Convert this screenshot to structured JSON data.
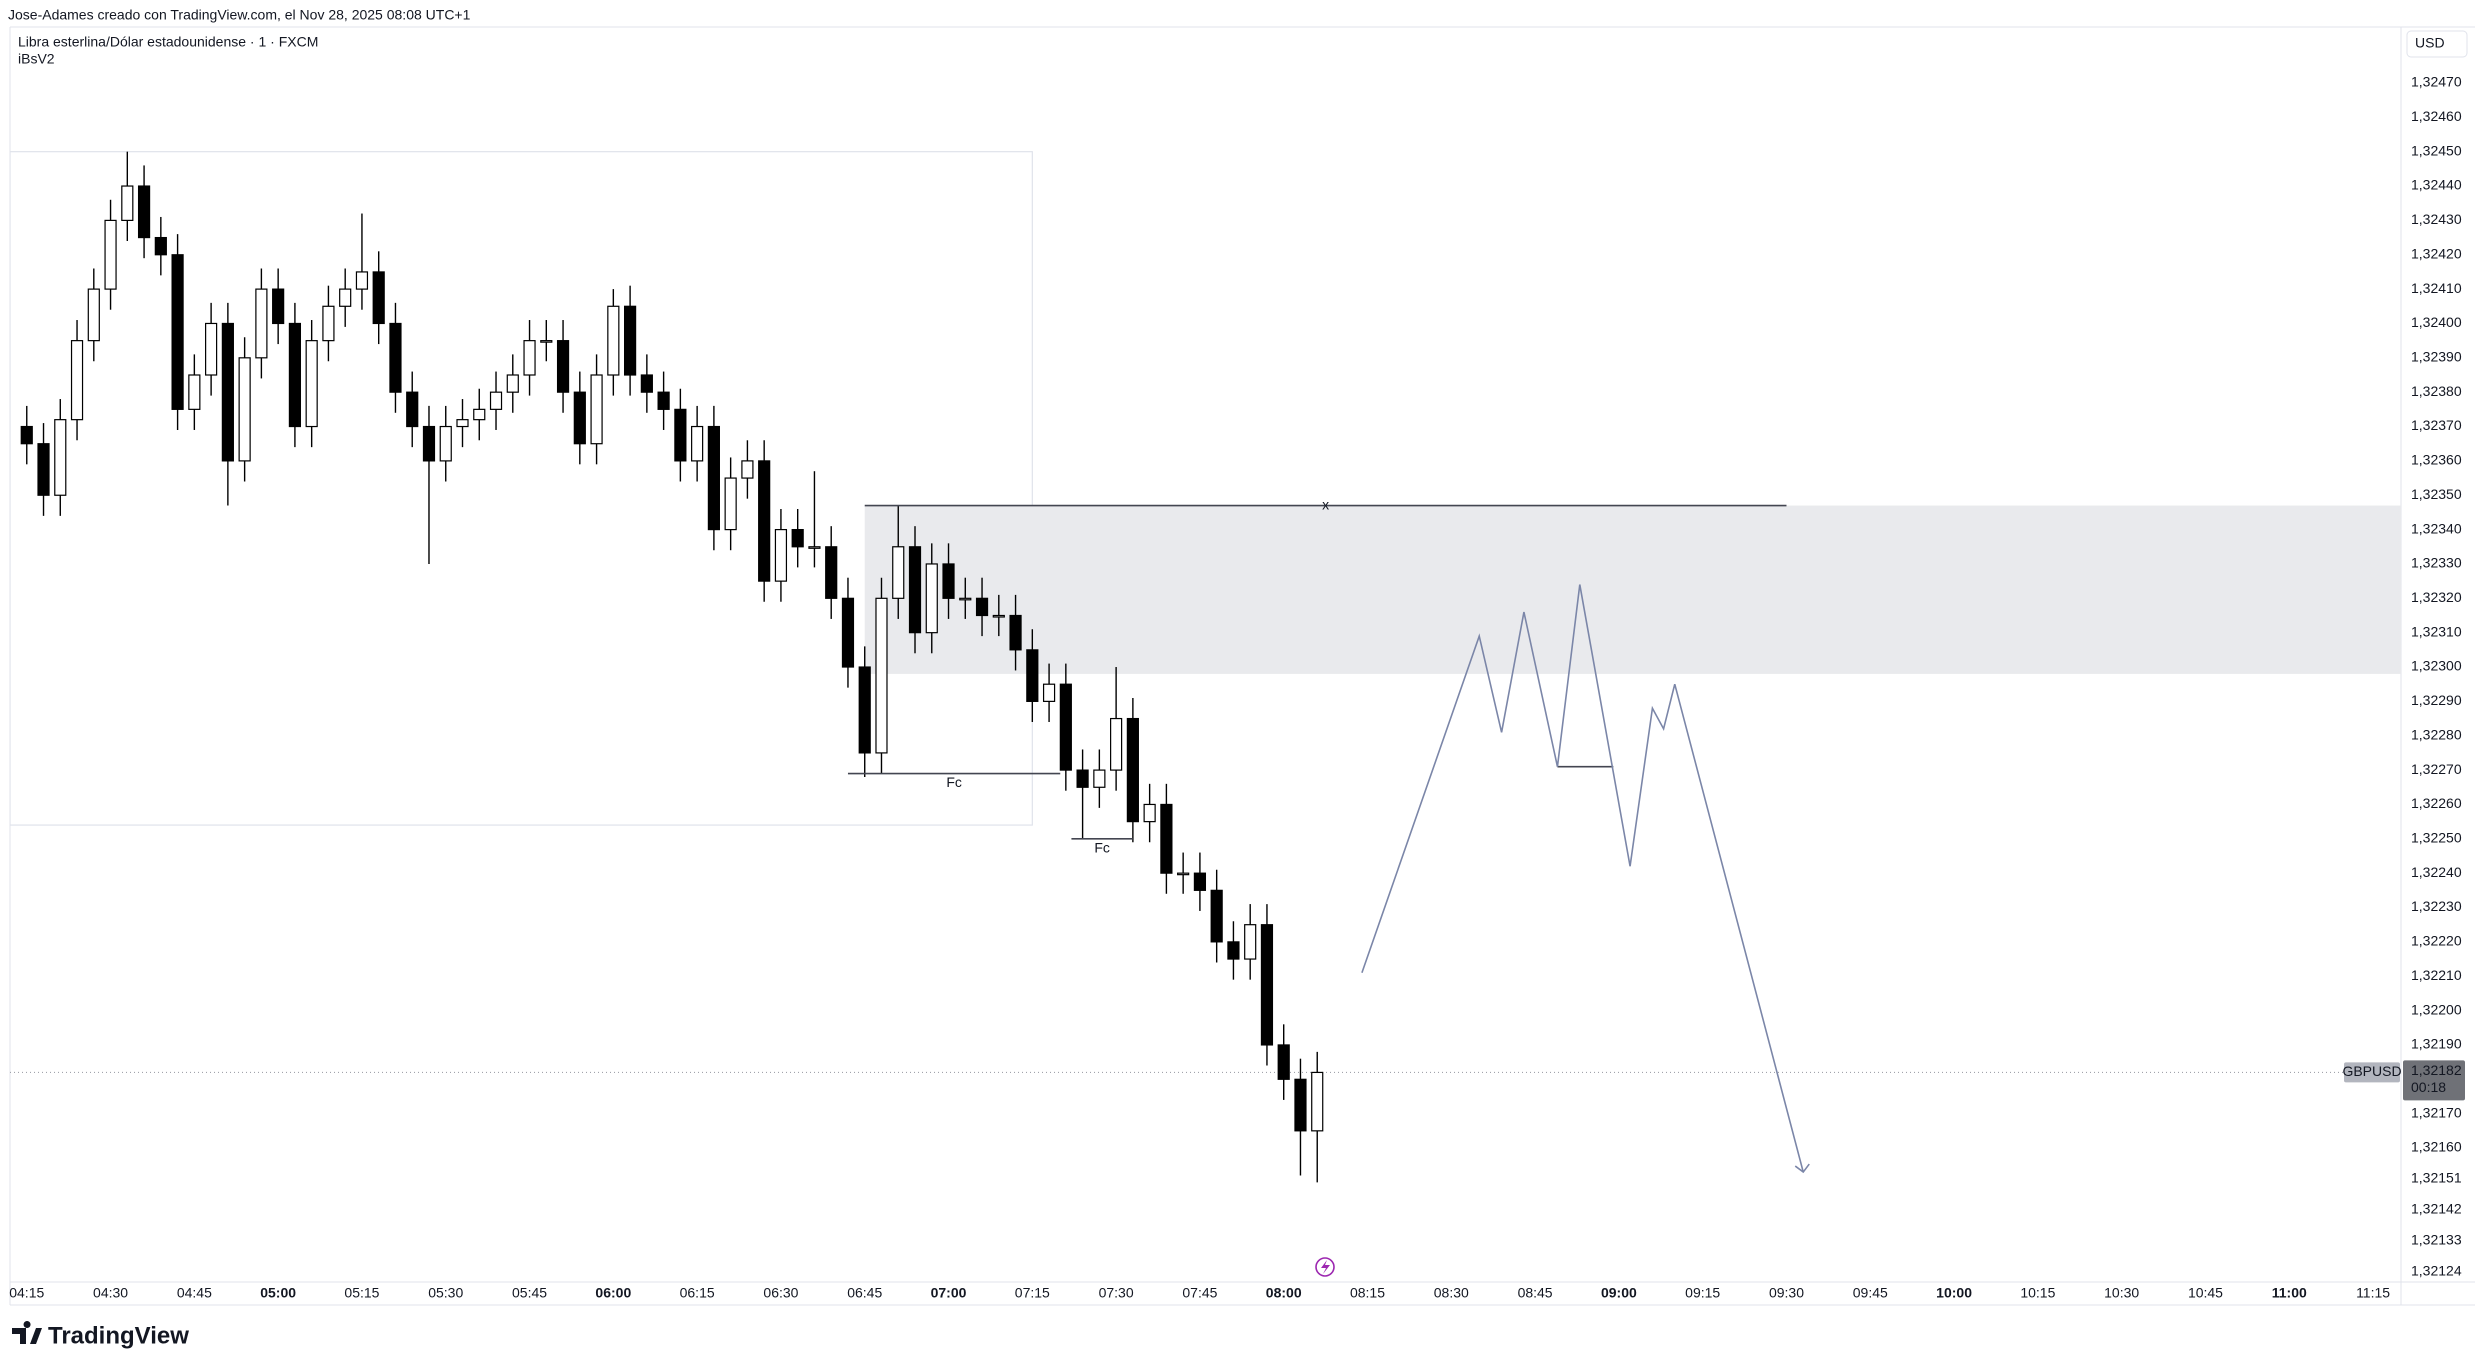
{
  "header": {
    "author_line": "Jose-Adames creado con TradingView.com, el Nov 28, 2025 08:08 UTC+1",
    "symbol_line": "Libra esterlina/Dólar estadounidense · 1 · FXCM",
    "indicator": "iBsV2",
    "currency": "USD",
    "brand": "TradingView"
  },
  "chart_data": {
    "type": "candlestick",
    "x": [
      "04:15",
      "04:18",
      "04:21",
      "04:24",
      "04:27",
      "04:30",
      "04:33",
      "04:36",
      "04:39",
      "04:42",
      "04:45",
      "04:48",
      "04:51",
      "04:54",
      "04:57",
      "05:00",
      "05:03",
      "05:06",
      "05:09",
      "05:12",
      "05:15",
      "05:18",
      "05:21",
      "05:24",
      "05:27",
      "05:30",
      "05:33",
      "05:36",
      "05:39",
      "05:42",
      "05:45",
      "05:48",
      "05:51",
      "05:54",
      "05:57",
      "06:00",
      "06:03",
      "06:06",
      "06:09",
      "06:12",
      "06:15",
      "06:18",
      "06:21",
      "06:24",
      "06:27",
      "06:30",
      "06:33",
      "06:36",
      "06:39",
      "06:42",
      "06:45",
      "06:48",
      "06:51",
      "06:54",
      "06:57",
      "07:00",
      "07:03",
      "07:06",
      "07:09",
      "07:12",
      "07:15",
      "07:18",
      "07:21",
      "07:24",
      "07:27",
      "07:30",
      "07:33",
      "07:36",
      "07:39",
      "07:42",
      "07:45",
      "07:48",
      "07:51",
      "07:54",
      "07:57",
      "08:00",
      "08:03",
      "08:06"
    ],
    "ohlc": [
      [
        1.3237,
        1.32376,
        1.32359,
        1.32365
      ],
      [
        1.32365,
        1.32371,
        1.32344,
        1.3235
      ],
      [
        1.3235,
        1.32378,
        1.32344,
        1.32372
      ],
      [
        1.32372,
        1.32401,
        1.32366,
        1.32395
      ],
      [
        1.32395,
        1.32416,
        1.32389,
        1.3241
      ],
      [
        1.3241,
        1.32436,
        1.32404,
        1.3243
      ],
      [
        1.3243,
        1.3245,
        1.32424,
        1.3244
      ],
      [
        1.3244,
        1.32446,
        1.32419,
        1.32425
      ],
      [
        1.32425,
        1.32431,
        1.32414,
        1.3242
      ],
      [
        1.3242,
        1.32426,
        1.32369,
        1.32375
      ],
      [
        1.32375,
        1.32391,
        1.32369,
        1.32385
      ],
      [
        1.32385,
        1.32406,
        1.32379,
        1.324
      ],
      [
        1.324,
        1.32406,
        1.32347,
        1.3236
      ],
      [
        1.3236,
        1.32396,
        1.32354,
        1.3239
      ],
      [
        1.3239,
        1.32416,
        1.32384,
        1.3241
      ],
      [
        1.3241,
        1.32416,
        1.32394,
        1.324
      ],
      [
        1.324,
        1.32406,
        1.32364,
        1.3237
      ],
      [
        1.3237,
        1.32401,
        1.32364,
        1.32395
      ],
      [
        1.32395,
        1.32411,
        1.32389,
        1.32405
      ],
      [
        1.32405,
        1.32416,
        1.32399,
        1.3241
      ],
      [
        1.3241,
        1.32432,
        1.32404,
        1.32415
      ],
      [
        1.32415,
        1.32421,
        1.32394,
        1.324
      ],
      [
        1.324,
        1.32406,
        1.32374,
        1.3238
      ],
      [
        1.3238,
        1.32386,
        1.32364,
        1.3237
      ],
      [
        1.3237,
        1.32376,
        1.3233,
        1.3236
      ],
      [
        1.3236,
        1.32376,
        1.32354,
        1.3237
      ],
      [
        1.3237,
        1.32378,
        1.32364,
        1.32372
      ],
      [
        1.32372,
        1.32381,
        1.32366,
        1.32375
      ],
      [
        1.32375,
        1.32386,
        1.32369,
        1.3238
      ],
      [
        1.3238,
        1.32391,
        1.32374,
        1.32385
      ],
      [
        1.32385,
        1.32401,
        1.32379,
        1.32395
      ],
      [
        1.32395,
        1.32401,
        1.32389,
        1.32395
      ],
      [
        1.32395,
        1.32401,
        1.32374,
        1.3238
      ],
      [
        1.3238,
        1.32386,
        1.32359,
        1.32365
      ],
      [
        1.32365,
        1.32391,
        1.32359,
        1.32385
      ],
      [
        1.32385,
        1.3241,
        1.32379,
        1.32405
      ],
      [
        1.32405,
        1.32411,
        1.32379,
        1.32385
      ],
      [
        1.32385,
        1.32391,
        1.32374,
        1.3238
      ],
      [
        1.3238,
        1.32386,
        1.32369,
        1.32375
      ],
      [
        1.32375,
        1.32381,
        1.32354,
        1.3236
      ],
      [
        1.3236,
        1.32376,
        1.32354,
        1.3237
      ],
      [
        1.3237,
        1.32376,
        1.32334,
        1.3234
      ],
      [
        1.3234,
        1.32361,
        1.32334,
        1.32355
      ],
      [
        1.32355,
        1.32366,
        1.32349,
        1.3236
      ],
      [
        1.3236,
        1.32366,
        1.32319,
        1.32325
      ],
      [
        1.32325,
        1.32346,
        1.32319,
        1.3234
      ],
      [
        1.3234,
        1.32346,
        1.32329,
        1.32335
      ],
      [
        1.32335,
        1.32357,
        1.32329,
        1.32335
      ],
      [
        1.32335,
        1.32341,
        1.32314,
        1.3232
      ],
      [
        1.3232,
        1.32326,
        1.32294,
        1.323
      ],
      [
        1.323,
        1.32306,
        1.32268,
        1.32275
      ],
      [
        1.32275,
        1.32326,
        1.32269,
        1.3232
      ],
      [
        1.3232,
        1.32347,
        1.32314,
        1.32335
      ],
      [
        1.32335,
        1.32341,
        1.32304,
        1.3231
      ],
      [
        1.3231,
        1.32336,
        1.32304,
        1.3233
      ],
      [
        1.3233,
        1.32336,
        1.32314,
        1.3232
      ],
      [
        1.3232,
        1.32326,
        1.32314,
        1.3232
      ],
      [
        1.3232,
        1.32326,
        1.32309,
        1.32315
      ],
      [
        1.32315,
        1.32321,
        1.32309,
        1.32315
      ],
      [
        1.32315,
        1.32321,
        1.32299,
        1.32305
      ],
      [
        1.32305,
        1.32311,
        1.32284,
        1.3229
      ],
      [
        1.3229,
        1.32301,
        1.32284,
        1.32295
      ],
      [
        1.32295,
        1.32301,
        1.32264,
        1.3227
      ],
      [
        1.3227,
        1.32276,
        1.3225,
        1.32265
      ],
      [
        1.32265,
        1.32276,
        1.32259,
        1.3227
      ],
      [
        1.3227,
        1.323,
        1.32264,
        1.32285
      ],
      [
        1.32285,
        1.32291,
        1.32249,
        1.32255
      ],
      [
        1.32255,
        1.32266,
        1.32249,
        1.3226
      ],
      [
        1.3226,
        1.32266,
        1.32234,
        1.3224
      ],
      [
        1.3224,
        1.32246,
        1.32234,
        1.3224
      ],
      [
        1.3224,
        1.32246,
        1.32229,
        1.32235
      ],
      [
        1.32235,
        1.32241,
        1.32214,
        1.3222
      ],
      [
        1.3222,
        1.32226,
        1.32209,
        1.32215
      ],
      [
        1.32215,
        1.32231,
        1.32209,
        1.32225
      ],
      [
        1.32225,
        1.32231,
        1.32184,
        1.3219
      ],
      [
        1.3219,
        1.32196,
        1.32174,
        1.3218
      ],
      [
        1.3218,
        1.32186,
        1.32152,
        1.32165
      ],
      [
        1.32165,
        1.32188,
        1.3215,
        1.32182
      ]
    ],
    "up_color": "#ffffff",
    "down_color": "#000000",
    "wick_color": "#000000",
    "xlim": [
      "04:12",
      "11:20"
    ],
    "ylim": [
      1.32121,
      1.32486
    ],
    "xticks": [
      "04:15",
      "04:30",
      "04:45",
      "05:00",
      "05:15",
      "05:30",
      "05:45",
      "06:00",
      "06:15",
      "06:30",
      "06:45",
      "07:00",
      "07:15",
      "07:30",
      "07:45",
      "08:00",
      "08:15",
      "08:30",
      "08:45",
      "09:00",
      "09:15",
      "09:30",
      "09:45",
      "10:00",
      "10:15",
      "10:30",
      "10:45",
      "11:00",
      "11:15"
    ],
    "yticks": [
      {
        "value": 1.3247,
        "label": "1,32470"
      },
      {
        "value": 1.3246,
        "label": "1,32460"
      },
      {
        "value": 1.3245,
        "label": "1,32450"
      },
      {
        "value": 1.3244,
        "label": "1,32440"
      },
      {
        "value": 1.3243,
        "label": "1,32430"
      },
      {
        "value": 1.3242,
        "label": "1,32420"
      },
      {
        "value": 1.3241,
        "label": "1,32410"
      },
      {
        "value": 1.324,
        "label": "1,32400"
      },
      {
        "value": 1.3239,
        "label": "1,32390"
      },
      {
        "value": 1.3238,
        "label": "1,32380"
      },
      {
        "value": 1.3237,
        "label": "1,32370"
      },
      {
        "value": 1.3236,
        "label": "1,32360"
      },
      {
        "value": 1.3235,
        "label": "1,32350"
      },
      {
        "value": 1.3234,
        "label": "1,32340"
      },
      {
        "value": 1.3233,
        "label": "1,32330"
      },
      {
        "value": 1.3232,
        "label": "1,32320"
      },
      {
        "value": 1.3231,
        "label": "1,32310"
      },
      {
        "value": 1.323,
        "label": "1,32300"
      },
      {
        "value": 1.3229,
        "label": "1,32290"
      },
      {
        "value": 1.3228,
        "label": "1,32280"
      },
      {
        "value": 1.3227,
        "label": "1,32270"
      },
      {
        "value": 1.3226,
        "label": "1,32260"
      },
      {
        "value": 1.3225,
        "label": "1,32250"
      },
      {
        "value": 1.3224,
        "label": "1,32240"
      },
      {
        "value": 1.3223,
        "label": "1,32230"
      },
      {
        "value": 1.3222,
        "label": "1,32220"
      },
      {
        "value": 1.3221,
        "label": "1,32210"
      },
      {
        "value": 1.322,
        "label": "1,32200"
      },
      {
        "value": 1.3219,
        "label": "1,32190"
      },
      {
        "value": 1.3217,
        "label": "1,32170"
      },
      {
        "value": 1.3216,
        "label": "1,32160"
      },
      {
        "value": 1.32151,
        "label": "1,32151"
      },
      {
        "value": 1.32142,
        "label": "1,32142"
      },
      {
        "value": 1.32133,
        "label": "1,32133"
      },
      {
        "value": 1.32124,
        "label": "1,32124"
      }
    ],
    "box": {
      "x": [
        "04:12",
        "07:15"
      ],
      "y": [
        1.32254,
        1.3245
      ],
      "color": "#e0e3eb"
    },
    "zone": {
      "start": "06:45",
      "y": [
        1.32298,
        1.32347
      ],
      "color": "#e9eaed"
    },
    "lines": [
      {
        "label": "x",
        "x": [
          "06:45",
          "09:30"
        ],
        "y": 1.32347
      },
      {
        "label": "Fc",
        "x": [
          "06:42",
          "07:20"
        ],
        "y": 1.32269
      },
      {
        "label": "Fc",
        "x": [
          "07:22",
          "07:33"
        ],
        "y": 1.3225
      },
      {
        "x": [
          "08:49",
          "08:59"
        ],
        "y": 1.32271
      }
    ],
    "projection": {
      "color": "#7b86a8",
      "x": [
        "08:14",
        "08:35",
        "08:39",
        "08:43",
        "08:49",
        "08:53",
        "09:02",
        "09:06",
        "09:08",
        "09:10",
        "09:33"
      ],
      "values": [
        1.32211,
        1.32309,
        1.32281,
        1.32316,
        1.32271,
        1.32324,
        1.32242,
        1.32288,
        1.32282,
        1.32295,
        1.32153
      ]
    },
    "last_price": {
      "symbol": "GBPUSD",
      "value": 1.32182,
      "label": "1,32182",
      "countdown": "00:18"
    }
  }
}
